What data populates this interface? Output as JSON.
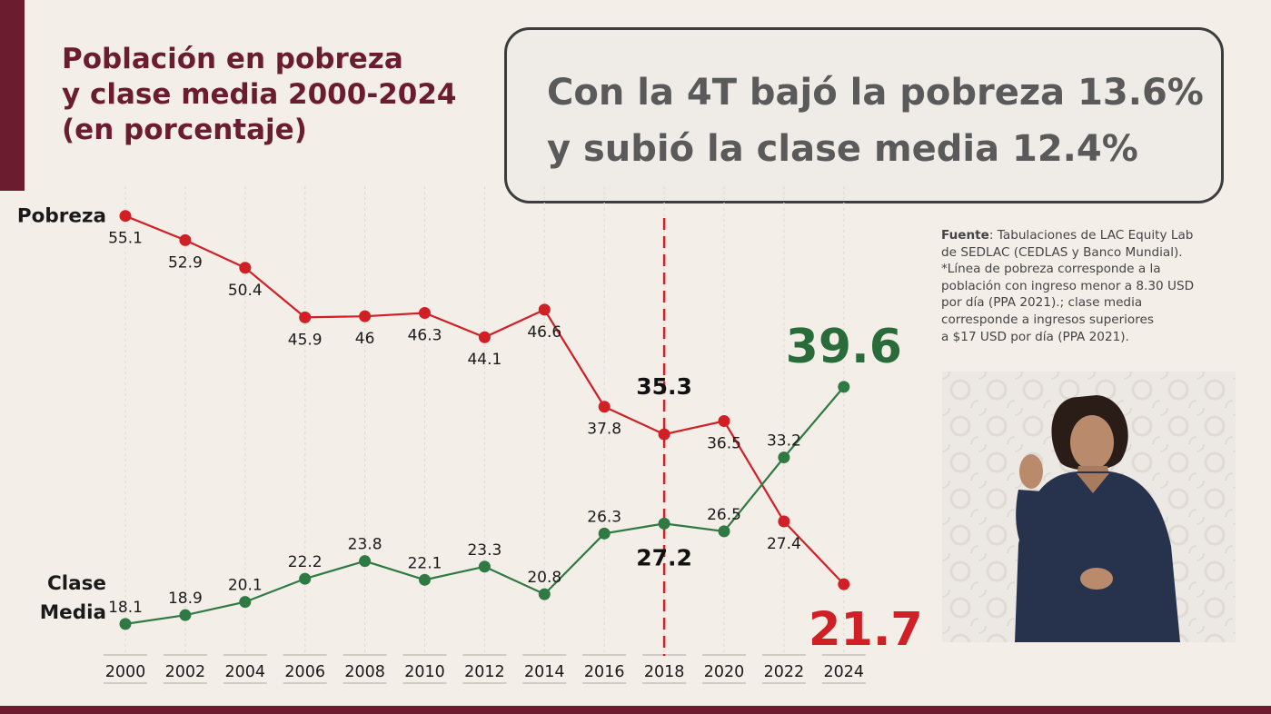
{
  "title": {
    "line1": "Población en pobreza",
    "line2": "y clase media 2000-2024",
    "line3": "(en porcentaje)"
  },
  "headline": {
    "line1": "Con la 4T bajó la pobreza 13.6%",
    "line2": "y subió la clase media 12.4%"
  },
  "source": {
    "label": "Fuente",
    "line1": ": Tabulaciones de LAC Equity Lab",
    "line2": "de SEDLAC (CEDLAS y Banco Mundial).",
    "line3": "*Línea de pobreza corresponde a la",
    "line4": "población con ingreso menor a 8.30 USD",
    "line5": "por día (PPA 2021).; clase media",
    "line6": "corresponde a ingresos superiores",
    "line7": "a $17 USD por día (PPA 2021)."
  },
  "colors": {
    "brand": "#6b1d2f",
    "pobreza": "#d11f26",
    "clase_media": "#2e7a42",
    "clase_media_highlight": "#2a6b3a",
    "reference_line": "#d11f26"
  },
  "chart_data": {
    "type": "line",
    "categories": [
      "2000",
      "2002",
      "2004",
      "2006",
      "2008",
      "2010",
      "2012",
      "2014",
      "2016",
      "2018",
      "2020",
      "2022",
      "2024"
    ],
    "series": [
      {
        "name": "Pobreza",
        "values": [
          55.1,
          52.9,
          50.4,
          45.9,
          46,
          46.3,
          44.1,
          46.6,
          37.8,
          35.3,
          36.5,
          27.4,
          21.7
        ],
        "labels": [
          "55.1",
          "52.9",
          "50.4",
          "45.9",
          "46",
          "46.3",
          "44.1",
          "46.6",
          "37.8",
          "35.3",
          "36.5",
          "27.4",
          "21.7"
        ]
      },
      {
        "name": "Clase Media",
        "display_name": [
          "Clase",
          "Media"
        ],
        "values": [
          18.1,
          18.9,
          20.1,
          22.2,
          23.8,
          22.1,
          23.3,
          20.8,
          26.3,
          27.2,
          26.5,
          33.2,
          39.6
        ],
        "labels": [
          "18.1",
          "18.9",
          "20.1",
          "22.2",
          "23.8",
          "22.1",
          "23.3",
          "20.8",
          "26.3",
          "27.2",
          "26.5",
          "33.2",
          "39.6"
        ]
      }
    ],
    "reference_category": "2018",
    "reference_style": "dashed",
    "highlight_labels": [
      "2018",
      "2024"
    ],
    "grid": false
  }
}
